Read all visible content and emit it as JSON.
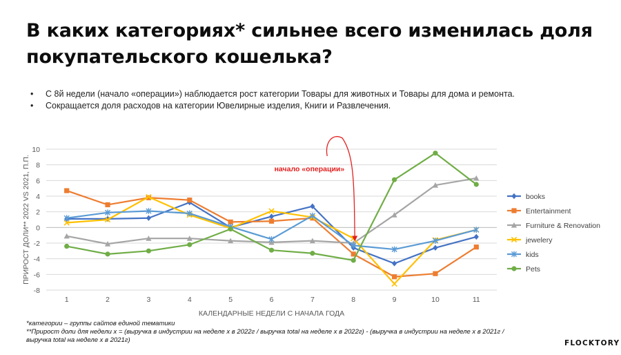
{
  "slide": {
    "title": "В каких категориях* сильнее всего изменилась доля покупательского кошелька?",
    "bullets": [
      "С 8й недели (начало «операции») наблюдается рост категории Товары для животных и Товары для дома и ремонта.",
      "Сокращается доля расходов на категории Ювелирные изделия, Книги и Развлечения."
    ],
    "footnotes": [
      "*категории – группы сайтов единой тематики",
      "**Прирост доли для недели x = (выручка в индустрии на неделе x в 2022г / выручка total на неделе x в 2022г) - (выручка в индустрии на неделе x в 2021г / выручка total на неделе x в 2021г)"
    ],
    "logo": "FLOCKTORY"
  },
  "chart_data": {
    "type": "line",
    "x": [
      1,
      2,
      3,
      4,
      5,
      6,
      7,
      8,
      9,
      10,
      11
    ],
    "xlabel": "КАЛЕНДАРНЫЕ НЕДЕЛИ С НАЧАЛА ГОДА",
    "ylabel": "ПРИРОСТ ДОЛИ** 2022 VS 2021, П.П.",
    "ylim": [
      -8,
      10
    ],
    "yticks": [
      -8,
      -6,
      -4,
      -2,
      0,
      2,
      4,
      6,
      8,
      10
    ],
    "grid": true,
    "legend_position": "right",
    "annotation": "начало «операции»",
    "annotation_color": "#e02020",
    "series": [
      {
        "name": "books",
        "color": "#4472c4",
        "marker": "diamond",
        "values": [
          1.1,
          1.1,
          1.2,
          3.2,
          0.0,
          1.4,
          2.7,
          -2.6,
          -4.6,
          -2.6,
          -1.2
        ]
      },
      {
        "name": "Entertainment",
        "color": "#ed7d31",
        "marker": "square",
        "values": [
          4.7,
          2.9,
          3.8,
          3.5,
          0.7,
          0.8,
          1.2,
          -3.4,
          -6.3,
          -5.9,
          -2.5
        ]
      },
      {
        "name": "Furniture & Renovation",
        "color": "#a5a5a5",
        "marker": "triangle",
        "values": [
          -1.1,
          -2.1,
          -1.4,
          -1.4,
          -1.7,
          -1.9,
          -1.7,
          -2.0,
          1.6,
          5.4,
          6.3
        ]
      },
      {
        "name": "jewelery",
        "color": "#ffc000",
        "marker": "x",
        "values": [
          0.6,
          1.0,
          3.9,
          1.6,
          -0.1,
          2.1,
          1.3,
          -1.4,
          -7.2,
          -1.6,
          -0.3
        ]
      },
      {
        "name": "kids",
        "color": "#5b9bd5",
        "marker": "asterisk",
        "values": [
          1.2,
          1.9,
          2.1,
          1.8,
          0.1,
          -1.5,
          1.5,
          -2.3,
          -2.8,
          -1.7,
          -0.3
        ]
      },
      {
        "name": "Pets",
        "color": "#70ad47",
        "marker": "circle",
        "values": [
          -2.4,
          -3.4,
          -3.0,
          -2.2,
          -0.2,
          -2.9,
          -3.3,
          -4.2,
          6.1,
          9.5,
          5.5
        ]
      }
    ]
  }
}
